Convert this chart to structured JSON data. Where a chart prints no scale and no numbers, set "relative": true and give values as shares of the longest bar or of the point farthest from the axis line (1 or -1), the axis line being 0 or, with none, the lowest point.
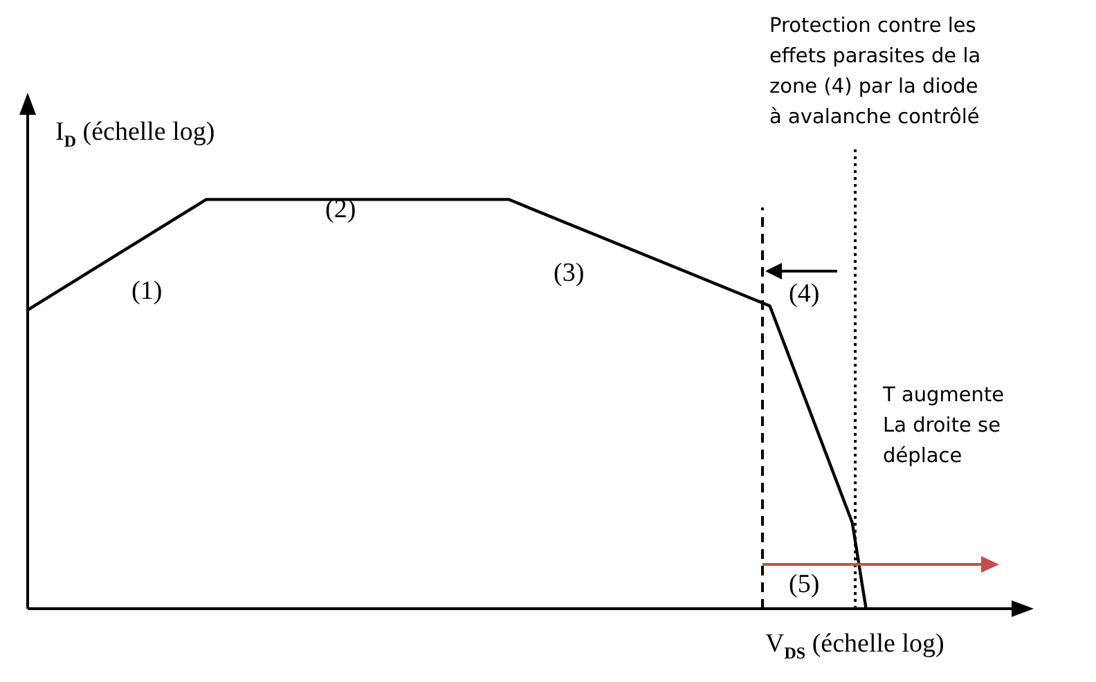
{
  "chart_data": {
    "type": "line",
    "relative": true,
    "xlabel": "V$_{DS}$ (échelle log)",
    "ylabel": "I$_{D}$ (échelle log)",
    "categories": [
      null,
      null,
      null,
      null,
      null,
      null,
      null,
      null,
      null,
      null,
      null,
      null,
      null,
      null,
      null,
      null,
      null,
      null,
      null,
      null,
      null,
      null,
      null,
      null,
      null,
      null,
      null,
      null,
      null,
      null,
      null,
      null,
      null,
      null,
      null,
      null,
      null,
      null,
      null,
      null,
      null,
      null,
      null,
      null,
      null,
      null,
      null,
      null,
      null,
      null,
      null,
      null,
      null,
      null,
      null,
      null,
      null,
      null,
      null,
      null,
      null,
      null,
      null,
      null,
      null,
      null,
      null,
      null,
      null,
      null,
      null,
      null,
      null,
      null
    ],
    "series": [
      {
        "color": "#000000",
        "values": [
          0.73,
          null,
          null,
          null,
          null,
          null,
          null,
          null,
          null,
          null,
          null,
          null,
          null,
          1,
          null,
          null,
          null,
          null,
          null,
          null,
          null,
          null,
          null,
          null,
          null,
          null,
          null,
          null,
          null,
          null,
          null,
          null,
          null,
          null,
          null,
          1,
          null,
          null,
          null,
          null,
          null,
          null,
          null,
          null,
          null,
          null,
          null,
          null,
          null,
          null,
          null,
          null,
          null,
          null,
          0.74,
          null,
          null,
          null,
          null,
          null,
          0.21,
          0,
          null,
          null,
          null,
          null,
          null,
          null,
          null,
          null,
          null,
          null,
          null,
          null
        ]
      }
    ],
    "marker": "none",
    "line_style": "solid",
    "legend": false,
    "annotations": [
      "(1)",
      "(2)",
      "(3)",
      "(4)",
      "(5)",
      "Protection contre les\neffets parasites de la\nzone (4) par la diode\nà avalanche contrôlé",
      "T augmente\nLa droite se\ndéplace"
    ]
  }
}
